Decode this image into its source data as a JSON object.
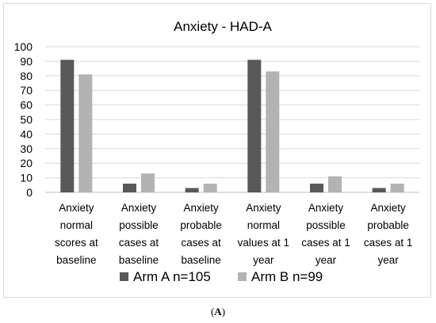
{
  "chart_data": {
    "type": "bar",
    "title": "Anxiety - HAD-A",
    "categories": [
      [
        "Anxiety",
        "normal",
        "scores at",
        "baseline"
      ],
      [
        "Anxiety",
        "possible",
        "cases at",
        "baseline"
      ],
      [
        "Anxiety",
        "probable",
        "cases at",
        "baseline"
      ],
      [
        "Anxiety",
        "normal",
        "values at 1",
        "year"
      ],
      [
        "Anxiety",
        "possible",
        "cases at 1",
        "year"
      ],
      [
        "Anxiety",
        "probable",
        "cases at 1",
        "year"
      ]
    ],
    "series": [
      {
        "name": "Arm A n=105",
        "color": "#595959",
        "values": [
          91,
          6,
          3,
          91,
          6,
          3
        ]
      },
      {
        "name": "Arm B n=99",
        "color": "#b3b3b3",
        "values": [
          81,
          13,
          6,
          83,
          11,
          6
        ]
      }
    ],
    "ylim": [
      0,
      100
    ],
    "yticks": [
      0,
      10,
      20,
      30,
      40,
      50,
      60,
      70,
      80,
      90,
      100
    ],
    "grid": true,
    "legend_position": "bottom"
  },
  "caption": {
    "open": "(",
    "label": "A",
    "close": ")"
  }
}
